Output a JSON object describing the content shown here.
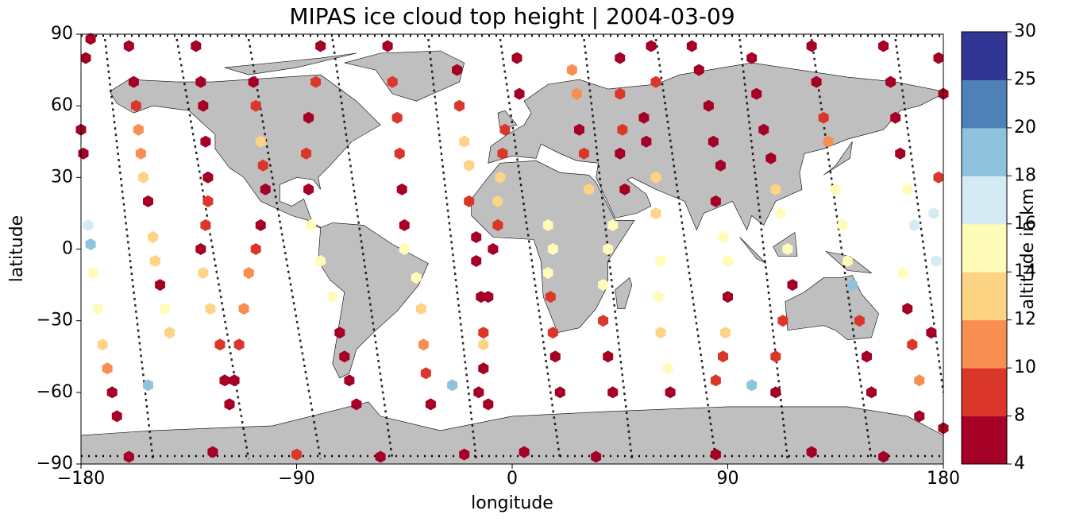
{
  "chart_data": {
    "type": "scatter",
    "title": "MIPAS ice cloud top height | 2004-03-09",
    "xlabel": "longitude",
    "ylabel": "latitude",
    "xlim": [
      -180,
      180
    ],
    "ylim": [
      -90,
      90
    ],
    "xticks": [
      {
        "value": -180,
        "label": "−180"
      },
      {
        "value": -90,
        "label": "−90"
      },
      0,
      90,
      180
    ],
    "yticks": [
      {
        "value": -90,
        "label": "−90"
      },
      {
        "value": -60,
        "label": "−60"
      },
      {
        "value": -30,
        "label": "−30"
      },
      0,
      30,
      60,
      90
    ],
    "x": [
      -180,
      -179,
      -178,
      -176,
      -177,
      -176,
      -175,
      -173,
      -171,
      -169,
      -167,
      -165,
      -160,
      -158,
      -157,
      -156,
      -155,
      -154,
      -152,
      -150,
      -149,
      -147,
      -145,
      -143,
      -132,
      -130,
      -129,
      -128,
      -127,
      -127,
      -128,
      -130,
      -129,
      -126,
      -122,
      -120,
      -118,
      -108,
      -107,
      -105,
      -104,
      -103,
      -105,
      -107,
      -110,
      -112,
      -114,
      -116,
      -118,
      -80,
      -82,
      -85,
      -86,
      -85,
      -84,
      -80,
      -75,
      -72,
      -70,
      -68,
      -65,
      -52,
      -50,
      -48,
      -47,
      -46,
      -45,
      -45,
      -40,
      -38,
      -37,
      -36,
      -34,
      -23,
      -22,
      -20,
      -18,
      -18,
      -15,
      -15,
      -13,
      -12,
      -12,
      -10,
      2,
      3,
      -3,
      -4,
      -5,
      -6,
      -6,
      -8,
      -10,
      -12,
      -14,
      25,
      27,
      28,
      30,
      32,
      15,
      17,
      15,
      16,
      17,
      18,
      20,
      45,
      45,
      46,
      45,
      47,
      42,
      40,
      38,
      38,
      40,
      42,
      58,
      60,
      55,
      56,
      60,
      60,
      62,
      61,
      62,
      65,
      66,
      75,
      78,
      82,
      84,
      87,
      85,
      88,
      90,
      90,
      89,
      88,
      85,
      100,
      102,
      105,
      108,
      110,
      112,
      115,
      117,
      113,
      110,
      110,
      125,
      127,
      130,
      132,
      135,
      138,
      140,
      142,
      145,
      148,
      150,
      155,
      158,
      160,
      162,
      165,
      168,
      163,
      165,
      167,
      170,
      170,
      178,
      180,
      178,
      176,
      177,
      175,
      180,
      -160,
      -125,
      -90,
      -55,
      -20,
      5,
      35,
      85,
      125,
      155,
      -152,
      -25,
      100
    ],
    "y": [
      50,
      40,
      80,
      88,
      10,
      2,
      -10,
      -25,
      -40,
      -50,
      -60,
      -70,
      85,
      70,
      60,
      50,
      40,
      30,
      20,
      5,
      -5,
      -15,
      -25,
      -35,
      85,
      70,
      60,
      45,
      30,
      20,
      10,
      0,
      -10,
      -25,
      -40,
      -55,
      -65,
      70,
      60,
      45,
      35,
      25,
      10,
      0,
      -10,
      -25,
      -40,
      -55,
      -65,
      85,
      70,
      55,
      40,
      25,
      10,
      -5,
      -20,
      -35,
      -45,
      -55,
      -65,
      85,
      70,
      55,
      40,
      25,
      10,
      0,
      -12,
      -25,
      -40,
      -52,
      -65,
      75,
      60,
      45,
      35,
      20,
      5,
      -5,
      -20,
      -35,
      -50,
      -65,
      80,
      65,
      50,
      40,
      30,
      20,
      10,
      0,
      -20,
      -40,
      -60,
      75,
      65,
      50,
      40,
      25,
      10,
      0,
      -10,
      -20,
      -35,
      -45,
      -60,
      80,
      65,
      50,
      40,
      25,
      10,
      0,
      -15,
      -30,
      -45,
      -60,
      85,
      70,
      55,
      45,
      30,
      15,
      -5,
      -20,
      -35,
      -50,
      -60,
      85,
      75,
      60,
      45,
      35,
      20,
      5,
      -5,
      -20,
      -35,
      -45,
      -55,
      80,
      65,
      50,
      38,
      25,
      15,
      0,
      -15,
      -30,
      -45,
      -60,
      85,
      70,
      55,
      45,
      25,
      10,
      -5,
      -15,
      -30,
      -45,
      -60,
      85,
      70,
      55,
      40,
      25,
      10,
      -10,
      -25,
      -40,
      -55,
      -70,
      80,
      65,
      30,
      15,
      -5,
      -35,
      -75,
      -87,
      -85,
      -86,
      -87,
      -86,
      -85,
      -87,
      -86,
      -85,
      -87,
      -57,
      -57,
      -57
    ],
    "values": [
      6,
      6,
      6,
      6,
      17,
      19,
      15,
      15,
      13,
      11,
      6,
      6,
      6,
      6,
      9,
      11,
      11,
      13,
      6,
      13,
      13,
      6,
      15,
      13,
      6,
      6,
      6,
      6,
      6,
      9,
      9,
      6,
      13,
      13,
      9,
      6,
      6,
      6,
      9,
      13,
      9,
      6,
      6,
      9,
      11,
      11,
      9,
      6,
      6,
      6,
      9,
      6,
      9,
      6,
      15,
      15,
      15,
      6,
      6,
      6,
      6,
      6,
      9,
      9,
      9,
      6,
      6,
      15,
      15,
      13,
      11,
      9,
      6,
      6,
      9,
      13,
      13,
      9,
      6,
      6,
      6,
      9,
      6,
      6,
      6,
      6,
      9,
      9,
      13,
      13,
      9,
      6,
      6,
      13,
      6,
      11,
      11,
      6,
      9,
      13,
      15,
      15,
      15,
      9,
      9,
      6,
      6,
      6,
      9,
      9,
      6,
      6,
      15,
      15,
      15,
      9,
      6,
      6,
      6,
      9,
      6,
      6,
      13,
      13,
      15,
      15,
      13,
      15,
      6,
      6,
      6,
      6,
      6,
      6,
      6,
      15,
      15,
      6,
      13,
      9,
      9,
      6,
      6,
      6,
      6,
      13,
      15,
      15,
      6,
      9,
      9,
      6,
      6,
      6,
      9,
      11,
      15,
      15,
      15,
      19,
      9,
      6,
      6,
      6,
      6,
      6,
      6,
      15,
      17,
      15,
      6,
      9,
      11,
      6,
      6,
      6,
      9,
      17,
      17,
      6,
      6,
      6,
      6,
      9,
      6,
      6,
      6,
      6,
      6,
      6,
      6,
      19,
      19,
      19
    ],
    "colorbar": {
      "label": "altitude in km",
      "bounds": [
        4,
        8,
        10,
        12,
        14,
        16,
        18,
        20,
        25,
        30
      ],
      "colors": [
        "#a50026",
        "#da372a",
        "#f88e52",
        "#fdd384",
        "#fffbb9",
        "#d4ebf3",
        "#8fc3dd",
        "#4f81b9",
        "#313695"
      ]
    }
  }
}
